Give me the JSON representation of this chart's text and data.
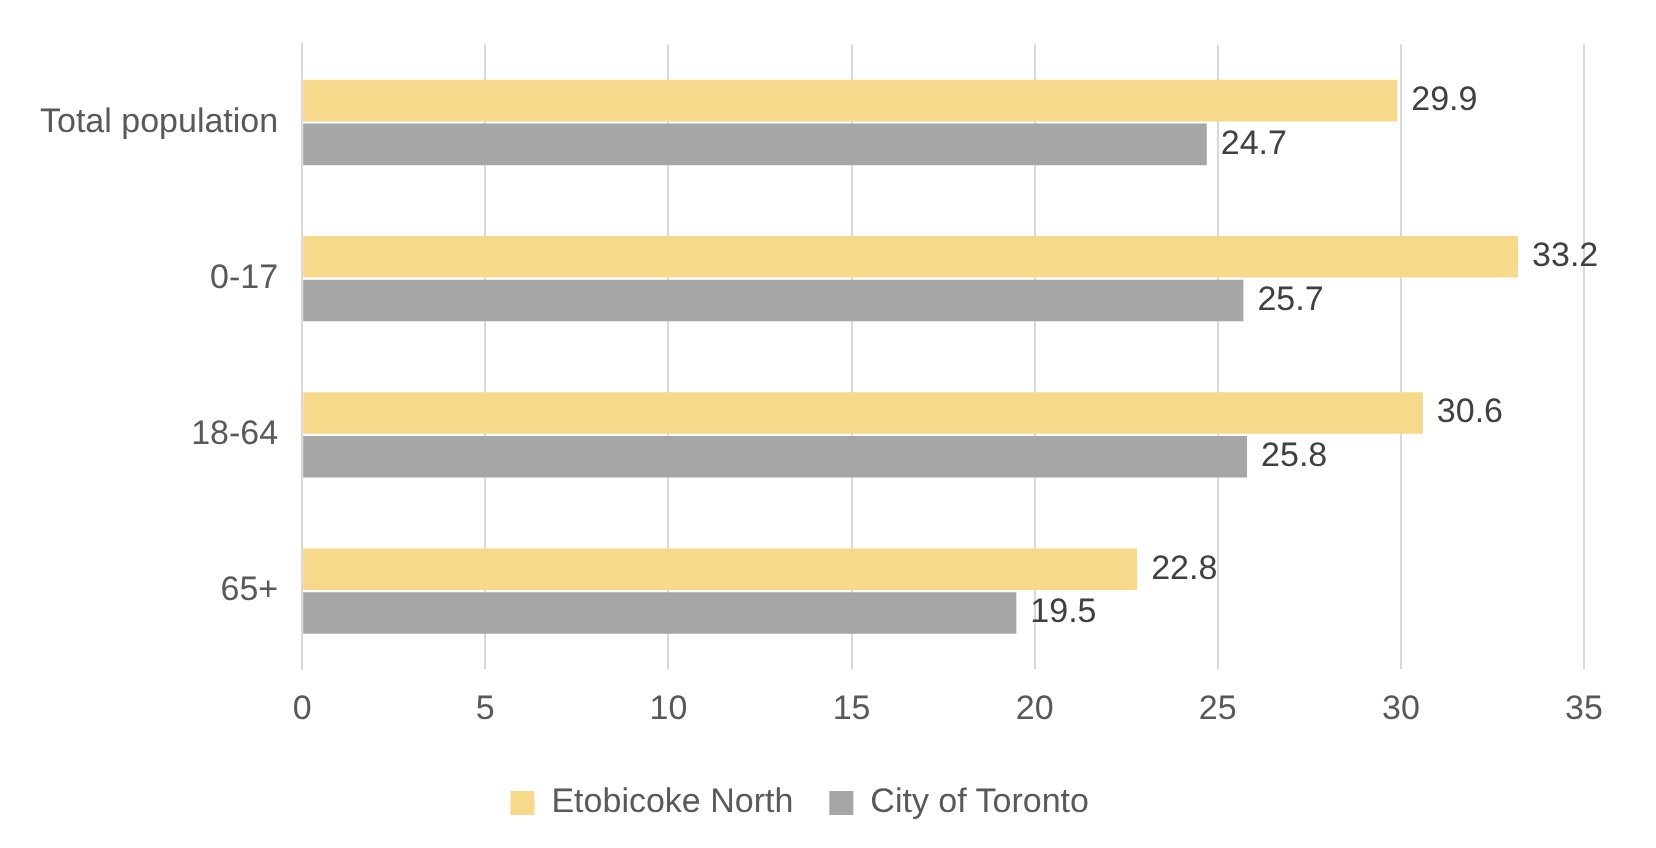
{
  "chart_data": {
    "type": "bar",
    "orientation": "horizontal",
    "categories": [
      "Total population",
      "0-17",
      "18-64",
      "65+"
    ],
    "series": [
      {
        "name": "Etobicoke North",
        "color": "#f7d98b",
        "values": [
          29.9,
          33.2,
          30.6,
          22.8
        ]
      },
      {
        "name": "City of Toronto",
        "color": "#a6a6a6",
        "values": [
          24.7,
          25.7,
          25.8,
          19.5
        ]
      }
    ],
    "xlim": [
      0,
      35
    ],
    "xticks": [
      0,
      5,
      10,
      15,
      20,
      25,
      30,
      35
    ],
    "grid": "x",
    "legend": "bottom",
    "data_labels": true
  }
}
